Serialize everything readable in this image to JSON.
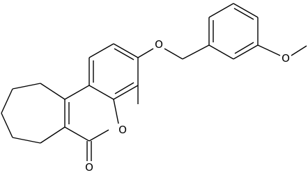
{
  "atoms": [
    {
      "label": "O"
    },
    {
      "label": "O"
    },
    {
      "label": "O"
    },
    {
      "label": "O"
    }
  ]
}
